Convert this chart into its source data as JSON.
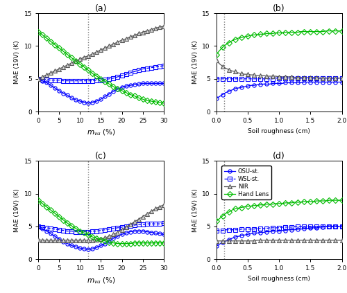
{
  "title_a": "(a)",
  "title_b": "(b)",
  "title_c": "(c)",
  "title_d": "(d)",
  "xlabel_mvu": "$m_{vu}$ (%)",
  "xlabel_sr": "Soil roughness (cm)",
  "ylabel": "MAE (19V) (K)",
  "ylim": [
    0,
    15
  ],
  "yticks": [
    0,
    5,
    10,
    15
  ],
  "mvu_xticks": [
    0,
    5,
    10,
    15,
    20,
    25,
    30
  ],
  "sr_xticks": [
    0,
    0.5,
    1.0,
    1.5,
    2.0
  ],
  "vline_mvu": 12,
  "vline_sr": 0.12,
  "colors": {
    "OSU": "#0000FF",
    "WSL": "#0000FF",
    "NIR": "#555555",
    "HandLens": "#00BB00"
  },
  "legend_labels": [
    "OSU-st.",
    "WSL-st.",
    "NIR",
    "Hand Lens"
  ],
  "mvu_x": [
    0,
    1,
    2,
    3,
    4,
    5,
    6,
    7,
    8,
    9,
    10,
    11,
    12,
    13,
    14,
    15,
    16,
    17,
    18,
    19,
    20,
    21,
    22,
    23,
    24,
    25,
    26,
    27,
    28,
    29,
    30
  ],
  "sr_x": [
    0.0,
    0.05,
    0.1,
    0.15,
    0.2,
    0.25,
    0.3,
    0.35,
    0.4,
    0.45,
    0.5,
    0.55,
    0.6,
    0.65,
    0.7,
    0.75,
    0.8,
    0.85,
    0.9,
    0.95,
    1.0,
    1.05,
    1.1,
    1.15,
    1.2,
    1.25,
    1.3,
    1.35,
    1.4,
    1.45,
    1.5,
    1.55,
    1.6,
    1.65,
    1.7,
    1.75,
    1.8,
    1.85,
    1.9,
    1.95,
    2.0
  ],
  "panel_a": {
    "OSU": [
      5.0,
      4.7,
      4.4,
      4.0,
      3.6,
      3.2,
      2.8,
      2.5,
      2.1,
      1.8,
      1.6,
      1.4,
      1.3,
      1.4,
      1.6,
      1.9,
      2.3,
      2.7,
      3.1,
      3.4,
      3.7,
      3.9,
      4.0,
      4.1,
      4.2,
      4.3,
      4.3,
      4.3,
      4.3,
      4.3,
      4.3
    ],
    "WSL": [
      5.0,
      4.9,
      4.9,
      4.8,
      4.8,
      4.8,
      4.7,
      4.7,
      4.7,
      4.7,
      4.7,
      4.7,
      4.7,
      4.7,
      4.8,
      4.8,
      4.9,
      5.0,
      5.1,
      5.3,
      5.5,
      5.7,
      5.9,
      6.1,
      6.3,
      6.5,
      6.6,
      6.7,
      6.8,
      6.9,
      7.0
    ],
    "NIR": [
      5.0,
      5.3,
      5.6,
      5.9,
      6.2,
      6.5,
      6.8,
      7.1,
      7.4,
      7.7,
      8.0,
      8.3,
      8.5,
      8.8,
      9.1,
      9.4,
      9.7,
      10.0,
      10.3,
      10.6,
      10.9,
      11.1,
      11.4,
      11.6,
      11.9,
      12.1,
      12.3,
      12.5,
      12.7,
      12.9,
      13.0
    ],
    "HL": [
      12.2,
      11.7,
      11.2,
      10.7,
      10.2,
      9.7,
      9.2,
      8.7,
      8.2,
      7.7,
      7.2,
      6.8,
      6.3,
      5.8,
      5.4,
      5.0,
      4.6,
      4.2,
      3.8,
      3.5,
      3.2,
      2.9,
      2.6,
      2.4,
      2.1,
      1.9,
      1.7,
      1.6,
      1.5,
      1.4,
      1.3
    ]
  },
  "panel_b": {
    "OSU": [
      2.0,
      2.3,
      2.6,
      2.9,
      3.1,
      3.3,
      3.5,
      3.6,
      3.7,
      3.8,
      3.9,
      4.0,
      4.0,
      4.1,
      4.1,
      4.2,
      4.2,
      4.2,
      4.3,
      4.3,
      4.3,
      4.3,
      4.4,
      4.4,
      4.4,
      4.4,
      4.4,
      4.4,
      4.5,
      4.5,
      4.5,
      4.5,
      4.5,
      4.5,
      4.5,
      4.5,
      4.5,
      4.5,
      4.5,
      4.5,
      4.5
    ],
    "WSL": [
      5.0,
      5.0,
      5.0,
      5.0,
      5.0,
      5.0,
      5.0,
      5.0,
      5.0,
      5.0,
      5.0,
      5.0,
      5.0,
      5.0,
      5.0,
      5.0,
      5.0,
      5.0,
      5.0,
      5.1,
      5.1,
      5.1,
      5.1,
      5.1,
      5.1,
      5.1,
      5.1,
      5.1,
      5.1,
      5.1,
      5.1,
      5.1,
      5.1,
      5.1,
      5.1,
      5.1,
      5.1,
      5.1,
      5.1,
      5.1,
      5.1
    ],
    "NIR": [
      7.8,
      7.3,
      6.9,
      6.6,
      6.4,
      6.2,
      6.1,
      5.9,
      5.8,
      5.7,
      5.7,
      5.6,
      5.6,
      5.5,
      5.5,
      5.5,
      5.4,
      5.4,
      5.4,
      5.4,
      5.3,
      5.3,
      5.3,
      5.3,
      5.3,
      5.2,
      5.2,
      5.2,
      5.2,
      5.2,
      5.2,
      5.2,
      5.2,
      5.1,
      5.1,
      5.1,
      5.1,
      5.1,
      5.1,
      5.1,
      5.1
    ],
    "HL": [
      8.7,
      9.3,
      9.8,
      10.2,
      10.5,
      10.8,
      11.0,
      11.2,
      11.3,
      11.4,
      11.5,
      11.6,
      11.7,
      11.7,
      11.8,
      11.8,
      11.9,
      11.9,
      11.9,
      12.0,
      12.0,
      12.0,
      12.1,
      12.1,
      12.1,
      12.1,
      12.1,
      12.2,
      12.2,
      12.2,
      12.2,
      12.2,
      12.2,
      12.2,
      12.2,
      12.3,
      12.3,
      12.3,
      12.3,
      12.3,
      12.3
    ]
  },
  "panel_c": {
    "OSU": [
      5.0,
      4.7,
      4.3,
      3.9,
      3.5,
      3.1,
      2.7,
      2.4,
      2.1,
      1.9,
      1.7,
      1.6,
      1.5,
      1.6,
      1.8,
      2.1,
      2.4,
      2.8,
      3.2,
      3.5,
      3.8,
      4.0,
      4.2,
      4.3,
      4.3,
      4.3,
      4.2,
      4.1,
      4.0,
      3.9,
      3.8
    ],
    "WSL": [
      5.0,
      4.9,
      4.8,
      4.7,
      4.6,
      4.5,
      4.4,
      4.3,
      4.3,
      4.2,
      4.2,
      4.2,
      4.2,
      4.3,
      4.3,
      4.4,
      4.5,
      4.6,
      4.7,
      4.8,
      4.9,
      5.0,
      5.1,
      5.2,
      5.3,
      5.3,
      5.4,
      5.4,
      5.4,
      5.4,
      5.5
    ],
    "NIR": [
      3.0,
      2.9,
      2.9,
      2.9,
      2.9,
      2.9,
      2.9,
      2.9,
      2.9,
      2.9,
      2.9,
      2.9,
      2.9,
      2.9,
      3.0,
      3.1,
      3.3,
      3.5,
      3.8,
      4.1,
      4.5,
      4.9,
      5.3,
      5.7,
      6.1,
      6.5,
      6.9,
      7.3,
      7.7,
      8.0,
      8.3
    ],
    "HL": [
      9.0,
      8.5,
      8.0,
      7.5,
      7.0,
      6.5,
      6.0,
      5.5,
      5.1,
      4.7,
      4.3,
      4.0,
      3.7,
      3.4,
      3.2,
      3.0,
      2.8,
      2.6,
      2.5,
      2.4,
      2.4,
      2.4,
      2.4,
      2.5,
      2.5,
      2.5,
      2.5,
      2.5,
      2.5,
      2.5,
      2.5
    ]
  },
  "panel_d": {
    "OSU": [
      2.0,
      2.3,
      2.6,
      2.8,
      3.0,
      3.2,
      3.4,
      3.5,
      3.6,
      3.7,
      3.8,
      3.9,
      4.0,
      4.0,
      4.1,
      4.1,
      4.2,
      4.2,
      4.3,
      4.3,
      4.3,
      4.4,
      4.4,
      4.5,
      4.5,
      4.5,
      4.6,
      4.6,
      4.7,
      4.7,
      4.8,
      4.8,
      4.8,
      4.9,
      4.9,
      5.0,
      5.0,
      5.0,
      5.0,
      5.0,
      5.0
    ],
    "WSL": [
      4.4,
      4.4,
      4.4,
      4.5,
      4.5,
      4.5,
      4.5,
      4.5,
      4.6,
      4.6,
      4.6,
      4.6,
      4.6,
      4.7,
      4.7,
      4.7,
      4.7,
      4.8,
      4.8,
      4.8,
      4.8,
      4.9,
      4.9,
      4.9,
      4.9,
      5.0,
      5.0,
      5.0,
      5.0,
      5.0,
      5.0,
      5.0,
      5.0,
      5.0,
      5.0,
      5.0,
      5.0,
      5.0,
      5.0,
      5.0,
      5.0
    ],
    "NIR": [
      2.8,
      2.8,
      2.8,
      2.8,
      2.8,
      2.8,
      2.8,
      2.8,
      2.8,
      2.8,
      2.8,
      2.8,
      2.8,
      2.9,
      2.9,
      2.9,
      2.9,
      2.9,
      2.9,
      2.9,
      2.9,
      2.9,
      2.9,
      2.9,
      2.9,
      2.9,
      2.9,
      2.9,
      2.9,
      2.9,
      2.9,
      2.9,
      2.9,
      2.9,
      2.9,
      2.9,
      2.9,
      2.9,
      2.9,
      2.9,
      2.9
    ],
    "HL": [
      5.8,
      6.2,
      6.6,
      7.0,
      7.2,
      7.5,
      7.7,
      7.8,
      7.9,
      8.0,
      8.1,
      8.1,
      8.2,
      8.2,
      8.3,
      8.3,
      8.4,
      8.4,
      8.4,
      8.5,
      8.5,
      8.5,
      8.6,
      8.6,
      8.6,
      8.7,
      8.7,
      8.7,
      8.8,
      8.8,
      8.8,
      8.8,
      8.9,
      8.9,
      8.9,
      8.9,
      9.0,
      9.0,
      9.0,
      9.0,
      9.0
    ]
  }
}
